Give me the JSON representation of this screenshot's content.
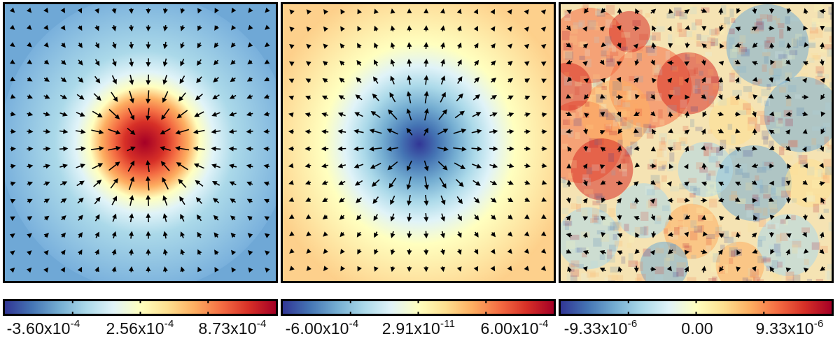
{
  "panels": [
    {
      "id": "p1",
      "kind": "radial-peak",
      "center_color": "#a50026",
      "background_color": "#6fa8d6",
      "arrow_direction": "inward"
    },
    {
      "id": "p2",
      "kind": "radial-dip",
      "center_color": "#313695",
      "background_color": "#fdd08c",
      "arrow_direction": "outward"
    },
    {
      "id": "p3",
      "kind": "noise",
      "background_color": "#f7e4b0",
      "arrow_direction": "mostly-small"
    }
  ],
  "colorbars": [
    {
      "ticks": [
        {
          "mant": "-3.60x10",
          "exp": "-4"
        },
        {
          "mant": "2.56x10",
          "exp": "-4"
        },
        {
          "mant": "8.73x10",
          "exp": "-4"
        }
      ]
    },
    {
      "ticks": [
        {
          "mant": "-6.00x10",
          "exp": "-4"
        },
        {
          "mant": "2.91x10",
          "exp": "-11"
        },
        {
          "mant": "6.00x10",
          "exp": "-4"
        }
      ]
    },
    {
      "ticks": [
        {
          "mant": "-9.33x10",
          "exp": "-6"
        },
        {
          "mant": "0.00",
          "exp": ""
        },
        {
          "mant": "9.33x10",
          "exp": "-6"
        }
      ]
    }
  ],
  "colormap": [
    "#313695",
    "#4575b4",
    "#74add1",
    "#abd9e9",
    "#e0f3f8",
    "#ffffbf",
    "#fee090",
    "#fdae61",
    "#f46d43",
    "#d73027",
    "#a50026"
  ]
}
